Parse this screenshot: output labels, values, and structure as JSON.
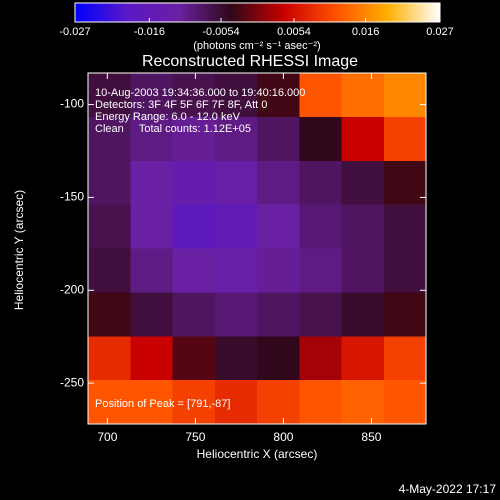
{
  "chart_data": {
    "type": "heatmap",
    "title": "Reconstructed RHESSI Image",
    "xlabel": "Heliocentric X (arcsec)",
    "ylabel": "Heliocentric Y (arcsec)",
    "colorbar_label": "(photons cm⁻² s⁻¹ asec⁻²)",
    "annotations": [
      "10-Aug-2003 19:34:36.000 to 19:40:16.000",
      "Detectors: 3F 4F 5F 6F 7F 8F, Att 0",
      "Energy Range: 6.0 - 12.0 keV",
      "Clean     Total counts: 1.12E+05"
    ],
    "peak_label": "Position of Peak = [791,-87]",
    "timestamp": "4-May-2022 17:17",
    "xlim": [
      689,
      881
    ],
    "ylim": [
      -272,
      -83
    ],
    "xticks": [
      700,
      750,
      800,
      850
    ],
    "yticks": [
      -100,
      -150,
      -200,
      -250
    ],
    "zlim": [
      -0.027,
      0.027
    ],
    "zticks": [
      -0.027,
      -0.016,
      -0.0054,
      0.0054,
      0.016,
      0.027
    ],
    "colorscale": [
      "#0000ff",
      "#5a18c8",
      "#6a20a0",
      "#300818",
      "#c80000",
      "#ff5000",
      "#ffb000",
      "#ffffff"
    ],
    "z": [
      [
        -0.006,
        -0.008,
        -0.007,
        -0.006,
        -0.003,
        0.012,
        0.014,
        0.016
      ],
      [
        -0.008,
        -0.01,
        -0.011,
        -0.01,
        -0.008,
        -0.004,
        0.004,
        0.01
      ],
      [
        -0.008,
        -0.012,
        -0.014,
        -0.013,
        -0.01,
        -0.008,
        -0.006,
        -0.003
      ],
      [
        -0.007,
        -0.012,
        -0.017,
        -0.016,
        -0.012,
        -0.009,
        -0.008,
        -0.006
      ],
      [
        -0.006,
        -0.01,
        -0.012,
        -0.013,
        -0.011,
        -0.01,
        -0.008,
        -0.006
      ],
      [
        -0.003,
        -0.006,
        -0.008,
        -0.009,
        -0.008,
        -0.007,
        -0.005,
        -0.003
      ],
      [
        0.008,
        0.004,
        -0.002,
        -0.005,
        -0.004,
        0.002,
        0.006,
        0.01
      ],
      [
        0.012,
        0.012,
        0.01,
        0.008,
        0.01,
        0.012,
        0.013,
        0.012
      ]
    ]
  }
}
